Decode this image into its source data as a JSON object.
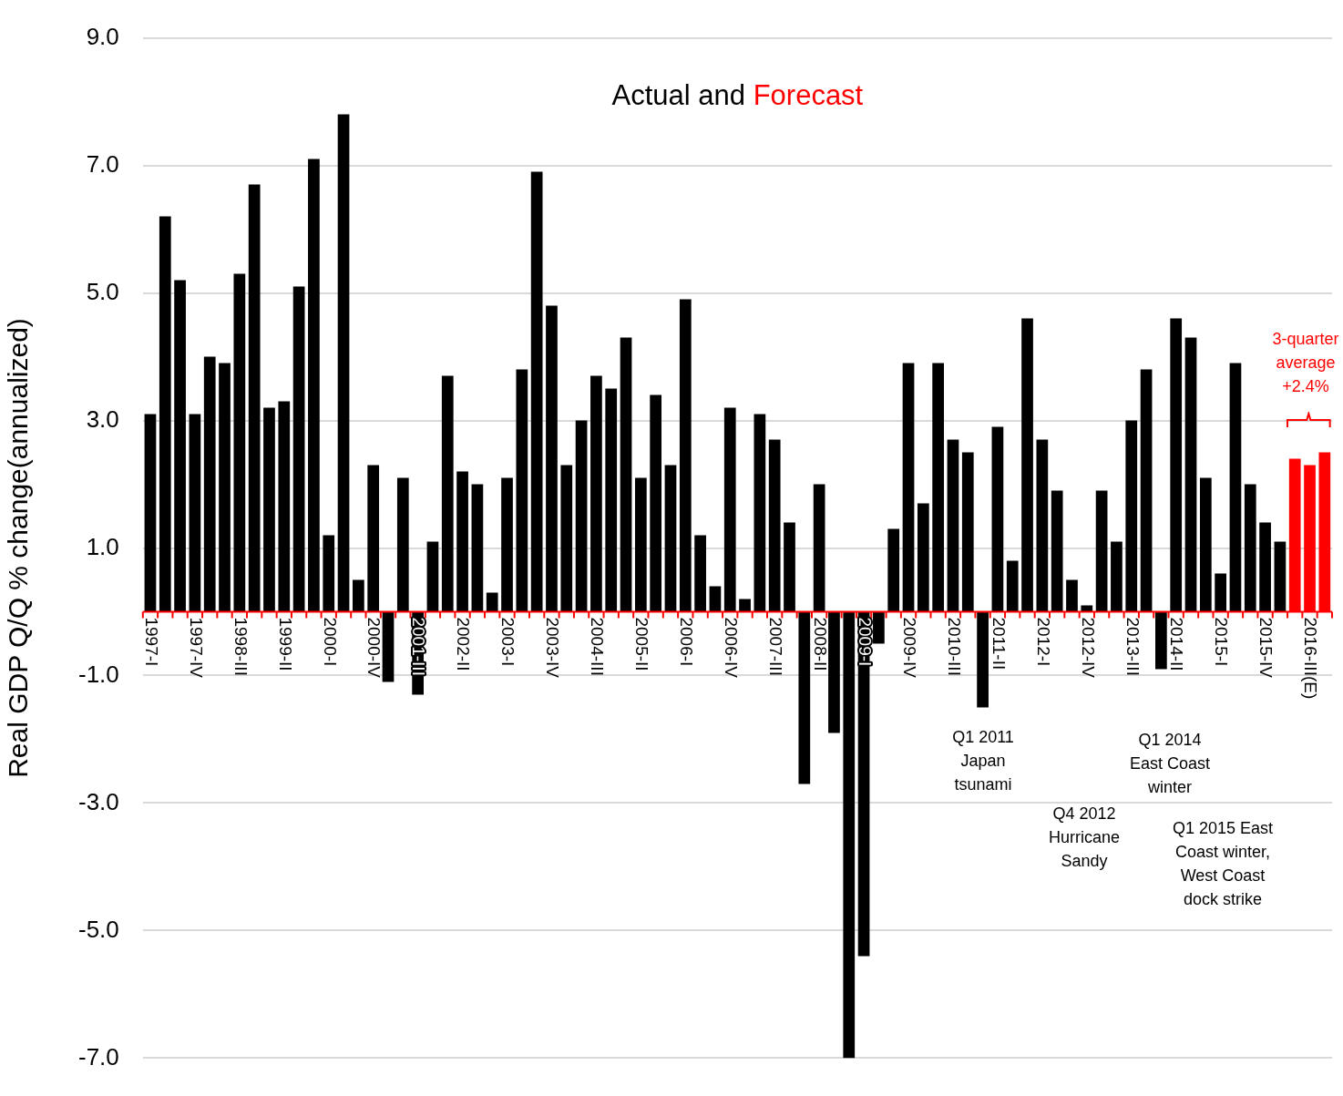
{
  "chart_data": {
    "type": "bar",
    "title": "Actual and Forecast",
    "ylabel": "Real GDP Q/Q % change(annualized)",
    "categories": [
      "1997-I",
      null,
      null,
      "1997-IV",
      null,
      null,
      "1998-III",
      null,
      null,
      "1999-II",
      null,
      null,
      "2000-I",
      null,
      null,
      "2000-IV",
      null,
      null,
      "2001-III",
      null,
      null,
      "2002-II",
      null,
      null,
      "2003-I",
      null,
      null,
      "2003-IV",
      null,
      null,
      "2004-III",
      null,
      null,
      "2005-II",
      null,
      null,
      "2006-I",
      null,
      null,
      "2006-IV",
      null,
      null,
      "2007-III",
      null,
      null,
      "2008-II",
      null,
      null,
      "2009-I",
      null,
      null,
      "2009-IV",
      null,
      null,
      "2010-III",
      null,
      null,
      "2011-II",
      null,
      null,
      "2012-I",
      null,
      null,
      "2012-IV",
      null,
      null,
      "2013-III",
      null,
      null,
      "2014-II",
      null,
      null,
      "2015-I",
      null,
      null,
      "2015-IV",
      null,
      null,
      "2016-III(E)",
      null
    ],
    "values": [
      3.1,
      6.2,
      5.2,
      3.1,
      4.0,
      3.9,
      5.3,
      6.7,
      3.2,
      3.3,
      5.1,
      7.1,
      1.2,
      7.8,
      0.5,
      2.3,
      -1.1,
      2.1,
      -1.3,
      1.1,
      3.7,
      2.2,
      2.0,
      0.3,
      2.1,
      3.8,
      6.9,
      4.8,
      2.3,
      3.0,
      3.7,
      3.5,
      4.3,
      2.1,
      3.4,
      2.3,
      4.9,
      1.2,
      0.4,
      3.2,
      0.2,
      3.1,
      2.7,
      1.4,
      -2.7,
      2.0,
      -1.9,
      -7.0,
      -5.4,
      -0.5,
      1.3,
      3.9,
      1.7,
      3.9,
      2.7,
      2.5,
      -1.5,
      2.9,
      0.8,
      4.6,
      2.7,
      1.9,
      0.5,
      0.1,
      1.9,
      1.1,
      3.0,
      3.8,
      -0.9,
      4.6,
      4.3,
      2.1,
      0.6,
      3.9,
      2.0,
      1.4,
      1.1,
      2.4,
      2.3,
      2.5
    ],
    "colors": [
      "#000000",
      "#000000",
      "#000000",
      "#000000",
      "#000000",
      "#000000",
      "#000000",
      "#000000",
      "#000000",
      "#000000",
      "#000000",
      "#000000",
      "#000000",
      "#000000",
      "#000000",
      "#000000",
      "#000000",
      "#000000",
      "#000000",
      "#000000",
      "#000000",
      "#000000",
      "#000000",
      "#000000",
      "#000000",
      "#000000",
      "#000000",
      "#000000",
      "#000000",
      "#000000",
      "#000000",
      "#000000",
      "#000000",
      "#000000",
      "#000000",
      "#000000",
      "#000000",
      "#000000",
      "#000000",
      "#000000",
      "#000000",
      "#000000",
      "#000000",
      "#000000",
      "#000000",
      "#000000",
      "#000000",
      "#000000",
      "#000000",
      "#000000",
      "#000000",
      "#000000",
      "#000000",
      "#000000",
      "#000000",
      "#000000",
      "#000000",
      "#000000",
      "#000000",
      "#000000",
      "#000000",
      "#000000",
      "#000000",
      "#000000",
      "#000000",
      "#000000",
      "#000000",
      "#000000",
      "#000000",
      "#000000",
      "#000000",
      "#000000",
      "#000000",
      "#000000",
      "#000000",
      "#000000",
      "#000000",
      "#ff0000",
      "#ff0000",
      "#ff0000"
    ],
    "ylim": [
      -7,
      9
    ],
    "yticks": [
      {
        "value": -7,
        "label": "-7.0"
      },
      {
        "value": -5,
        "label": "-5.0"
      },
      {
        "value": -3,
        "label": "-3.0"
      },
      {
        "value": -1,
        "label": "-1.0"
      },
      {
        "value": 1,
        "label": "1.0"
      },
      {
        "value": 3,
        "label": "3.0"
      },
      {
        "value": 5,
        "label": "5.0"
      },
      {
        "value": 7,
        "label": "7.0"
      },
      {
        "value": 9,
        "label": "9.0"
      }
    ],
    "grid": "y",
    "legend": false,
    "annotations": [
      "Q1 2011 Japan tsunami",
      "Q4 2012 Hurricane Sandy",
      "Q1 2014 East Coast winter",
      "Q1 2015 East Coast winter, West Coast dock strike",
      "3-quarter average +2.4%"
    ]
  }
}
